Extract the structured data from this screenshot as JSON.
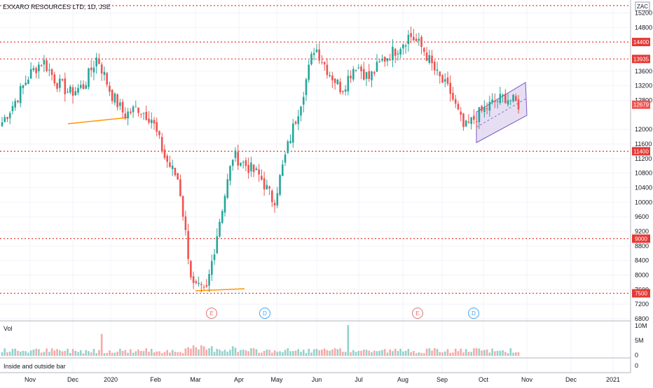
{
  "header": {
    "symbol_title": "EXXARO RESOURCES LTD, 1D, JSE"
  },
  "currency_badge": "ZAC",
  "price_axis": {
    "ticks": [
      "15200",
      "14800",
      "13600",
      "13200",
      "12800",
      "12000",
      "11600",
      "11200",
      "10800",
      "10400",
      "10000",
      "9600",
      "9200",
      "8800",
      "8400",
      "8000",
      "7600",
      "7200",
      "6800"
    ],
    "ylim": [
      6800,
      15400
    ]
  },
  "levels": [
    {
      "value": 15400,
      "label": "",
      "color": "#e53935"
    },
    {
      "value": 14400,
      "label": "14400",
      "color": "#e53935"
    },
    {
      "value": 13935,
      "label": "13935",
      "color": "#e53935"
    },
    {
      "value": 11400,
      "label": "11400",
      "color": "#e53935"
    },
    {
      "value": 9000,
      "label": "9000",
      "color": "#e53935"
    },
    {
      "value": 7500,
      "label": "7500",
      "color": "#e53935"
    }
  ],
  "last_price": {
    "value": 12679,
    "label": "12679",
    "color": "#ef5350"
  },
  "time_axis": {
    "labels": [
      "Nov",
      "Dec",
      "2020",
      "Feb",
      "Mar",
      "Apr",
      "May",
      "Jun",
      "Jul",
      "Aug",
      "Sep",
      "Oct",
      "Nov",
      "Dec",
      "2021"
    ]
  },
  "event_markers": [
    {
      "letter": "E",
      "type": "earnings",
      "color": "#e57373"
    },
    {
      "letter": "D",
      "type": "dividend",
      "color": "#42a5f5"
    },
    {
      "letter": "E",
      "type": "earnings",
      "color": "#e57373"
    },
    {
      "letter": "D",
      "type": "dividend",
      "color": "#42a5f5"
    }
  ],
  "volume_pane": {
    "label": "Vol",
    "ticks": [
      "10M",
      "5M",
      "0"
    ]
  },
  "indicator_pane": {
    "label": "Inside and outside bar",
    "tick": "0"
  },
  "colors": {
    "up": "#26a69a",
    "down": "#ef5350",
    "trendline": "#ff9800",
    "channel_fill": "#d1c4e9",
    "channel_line": "#7e57c2",
    "grid": "#f0f3fa"
  },
  "chart_data": {
    "type": "candlestick",
    "title": "EXXARO RESOURCES LTD, 1D, JSE",
    "series": [
      {
        "name": "price",
        "anchor_closes": [
          12200,
          12800,
          13500,
          13900,
          13300,
          13000,
          13200,
          14000,
          13000,
          12400,
          12600,
          12300,
          11200,
          10600,
          7700,
          7500,
          9500,
          11300,
          11000,
          10700,
          10000,
          11500,
          12800,
          14300,
          13600,
          13100,
          13800,
          13400,
          13900,
          14200,
          14600,
          14200,
          13500,
          13000,
          12000,
          12400,
          12700,
          12900,
          12679
        ]
      }
    ],
    "ylim": [
      6800,
      15400
    ],
    "volume": {
      "series": [
        {
          "name": "Vol"
        }
      ],
      "ylim": [
        0,
        10000000
      ]
    }
  }
}
